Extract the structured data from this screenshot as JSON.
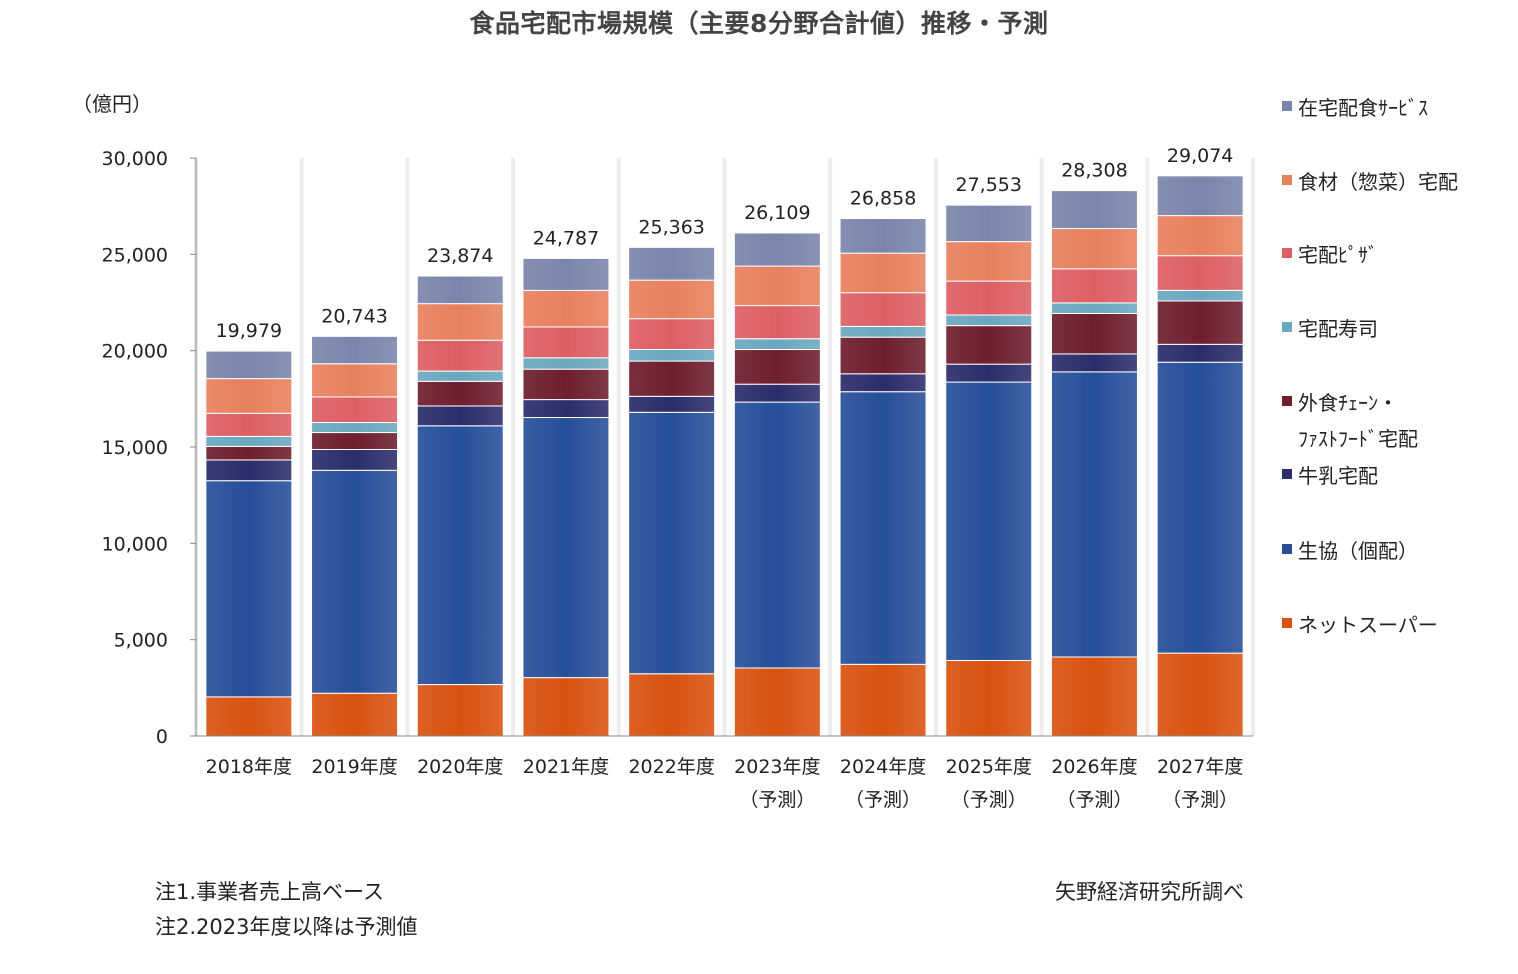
{
  "chart_data": {
    "type": "bar",
    "stacked": true,
    "title": "食品宅配市場規模（主要8分野合計値）推移・予測",
    "ylabel": "（億円）",
    "ylim": [
      0,
      30000
    ],
    "yticks": [
      0,
      5000,
      10000,
      15000,
      20000,
      25000,
      30000
    ],
    "ytick_labels": [
      "0",
      "5,000",
      "10,000",
      "15,000",
      "20,000",
      "25,000",
      "30,000"
    ],
    "grid": false,
    "legend_position": "right",
    "categories": [
      [
        "2018年度",
        ""
      ],
      [
        "2019年度",
        ""
      ],
      [
        "2020年度",
        ""
      ],
      [
        "2021年度",
        ""
      ],
      [
        "2022年度",
        ""
      ],
      [
        "2023年度",
        "（予測）"
      ],
      [
        "2024年度",
        "（予測）"
      ],
      [
        "2025年度",
        "（予測）"
      ],
      [
        "2026年度",
        "（予測）"
      ],
      [
        "2027年度",
        "（予測）"
      ]
    ],
    "totals": [
      "19,979",
      "20,743",
      "23,874",
      "24,787",
      "25,363",
      "26,109",
      "26,858",
      "27,553",
      "28,308",
      "29,074"
    ],
    "series": [
      {
        "name": "ネットスーパー",
        "color": "#d9520f",
        "values": [
          2030,
          2220,
          2670,
          3030,
          3230,
          3530,
          3720,
          3920,
          4100,
          4300
        ]
      },
      {
        "name": "生協（個配）",
        "color": "#264f9a",
        "values": [
          11220,
          11570,
          13430,
          13500,
          13570,
          13800,
          14150,
          14450,
          14800,
          15100
        ]
      },
      {
        "name": "牛乳宅配",
        "color": "#2b2d6a",
        "values": [
          1080,
          1080,
          1030,
          930,
          830,
          930,
          930,
          930,
          930,
          930
        ]
      },
      {
        "name": "外食ﾁｪｰﾝ・ﾌｧｽﾄﾌｰﾄﾞ宅配",
        "color": "#6e1e2d",
        "values": [
          700,
          880,
          1280,
          1580,
          1830,
          1800,
          1900,
          2000,
          2100,
          2250
        ]
      },
      {
        "name": "宅配寿司",
        "color": "#6aa8c0",
        "values": [
          520,
          520,
          530,
          590,
          600,
          560,
          560,
          550,
          550,
          550
        ]
      },
      {
        "name": "宅配ﾋﾟｻﾞ",
        "color": "#dd5f63",
        "values": [
          1200,
          1330,
          1600,
          1600,
          1600,
          1720,
          1750,
          1760,
          1770,
          1800
        ]
      },
      {
        "name": "食材（惣菜）宅配",
        "color": "#e8805e",
        "values": [
          1800,
          1720,
          1900,
          1900,
          2000,
          2050,
          2050,
          2050,
          2090,
          2080
        ]
      },
      {
        "name": "在宅配食ｻｰﾋﾞｽ",
        "color": "#7a85ac",
        "values": [
          1429,
          1423,
          1434,
          1657,
          1703,
          1719,
          1798,
          1893,
          1968,
          2064
        ]
      }
    ]
  },
  "notes": {
    "note1": "注1.事業者売上高ベース",
    "note2": "注2.2023年度以降は予測値",
    "source": "矢野経済研究所調べ"
  }
}
